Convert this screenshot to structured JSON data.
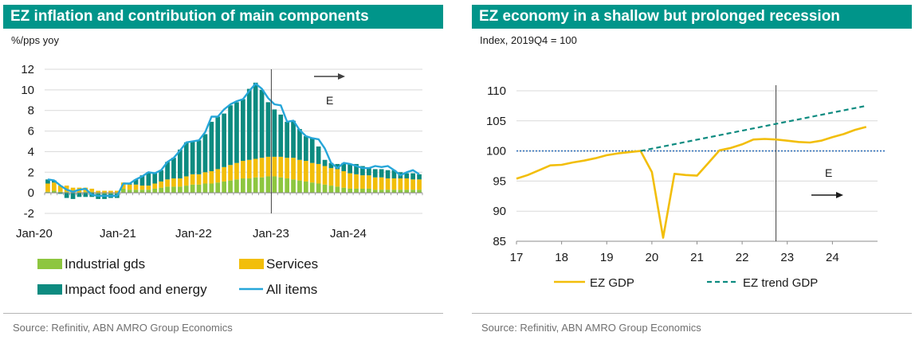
{
  "colors": {
    "header_bg": "#00958a",
    "industrial": "#8dc63f",
    "services": "#f2be0a",
    "food_energy": "#0d8b80",
    "all_items": "#26a6d9",
    "gdp": "#f2be0a",
    "trend": "#0d8b80",
    "baseline": "#2f6fb8"
  },
  "chart_data": [
    {
      "type": "bar",
      "title": "EZ inflation and contribution of main components",
      "ylabel": "%/pps yoy",
      "ylim": [
        -2,
        12
      ],
      "yticks": [
        -2,
        0,
        2,
        4,
        6,
        8,
        10,
        12
      ],
      "xticks": [
        "Jan-20",
        "Jan-21",
        "Jan-22",
        "Jan-23",
        "Jan-24"
      ],
      "forecast_start": "2022-12",
      "annotation": "E",
      "legend_position": "bottom",
      "x_start": "2020-01",
      "x_end": "2024-12",
      "series": [
        {
          "name": "Industrial gds",
          "values": [
            0.1,
            0.2,
            0.1,
            0.1,
            0.0,
            0.0,
            0.1,
            0.1,
            -0.1,
            -0.1,
            -0.1,
            -0.1,
            0.4,
            0.3,
            0.3,
            0.3,
            0.3,
            0.4,
            0.5,
            0.6,
            0.6,
            0.6,
            0.7,
            0.8,
            0.8,
            0.9,
            0.9,
            1.0,
            1.1,
            1.2,
            1.3,
            1.4,
            1.4,
            1.5,
            1.5,
            1.6,
            1.6,
            1.5,
            1.4,
            1.3,
            1.2,
            1.1,
            1.0,
            0.9,
            0.8,
            0.7,
            0.6,
            0.5,
            0.4,
            0.4,
            0.4,
            0.4,
            0.3,
            0.3,
            0.3,
            0.3,
            0.3,
            0.3,
            0.3,
            0.3
          ]
        },
        {
          "name": "Services",
          "values": [
            0.8,
            0.8,
            0.6,
            0.6,
            0.5,
            0.5,
            0.4,
            0.3,
            0.2,
            0.2,
            0.2,
            0.2,
            0.6,
            0.5,
            0.5,
            0.4,
            0.4,
            0.5,
            0.6,
            0.7,
            0.8,
            0.8,
            0.9,
            1.0,
            1.0,
            1.1,
            1.2,
            1.3,
            1.4,
            1.5,
            1.6,
            1.7,
            1.8,
            1.8,
            1.9,
            1.9,
            1.9,
            2.0,
            2.0,
            2.1,
            2.0,
            2.0,
            1.9,
            1.9,
            1.8,
            1.7,
            1.7,
            1.6,
            1.5,
            1.4,
            1.3,
            1.3,
            1.2,
            1.2,
            1.1,
            1.1,
            1.1,
            1.1,
            1.0,
            1.0
          ]
        },
        {
          "name": "Impact food and energy",
          "values": [
            0.4,
            0.2,
            -0.1,
            -0.5,
            -0.6,
            -0.4,
            -0.4,
            -0.4,
            -0.5,
            -0.5,
            -0.4,
            -0.4,
            0.0,
            0.1,
            0.5,
            1.0,
            1.3,
            1.0,
            1.1,
            1.7,
            2.0,
            2.8,
            3.3,
            3.2,
            3.3,
            3.7,
            4.8,
            5.1,
            5.2,
            5.8,
            5.9,
            6.0,
            6.9,
            7.4,
            6.6,
            5.3,
            4.6,
            4.1,
            3.5,
            3.6,
            3.0,
            2.4,
            2.4,
            1.7,
            0.6,
            0.5,
            0.5,
            0.8,
            0.9,
            1.0,
            0.9,
            0.7,
            0.8,
            0.8,
            0.8,
            0.8,
            0.6,
            0.5,
            0.6,
            0.5
          ]
        },
        {
          "name": "All items",
          "values": [
            1.3,
            1.2,
            0.7,
            0.3,
            0.1,
            0.3,
            0.4,
            -0.2,
            -0.3,
            -0.3,
            -0.3,
            -0.3,
            0.9,
            0.9,
            1.3,
            1.6,
            2.0,
            1.9,
            2.2,
            3.0,
            3.4,
            4.1,
            4.9,
            5.0,
            5.1,
            5.9,
            7.4,
            7.4,
            8.1,
            8.6,
            8.9,
            9.1,
            9.9,
            10.6,
            10.1,
            9.2,
            8.6,
            8.5,
            6.9,
            7.0,
            6.1,
            5.5,
            5.3,
            5.2,
            4.3,
            2.9,
            2.4,
            2.9,
            2.8,
            2.6,
            2.4,
            2.4,
            2.6,
            2.5,
            2.6,
            2.2,
            1.7,
            2.0,
            2.2,
            1.8
          ]
        }
      ]
    },
    {
      "type": "line",
      "title": "EZ economy in a shallow but prolonged recession",
      "ylabel": "Index, 2019Q4 = 100",
      "ylim": [
        85,
        110
      ],
      "yticks": [
        85,
        90,
        95,
        100,
        105,
        110
      ],
      "xlim": [
        17,
        25
      ],
      "xticks": [
        "17",
        "18",
        "19",
        "20",
        "21",
        "22",
        "23",
        "24"
      ],
      "reference_line": 100,
      "forecast_start": 22.75,
      "annotation": "E",
      "legend_position": "bottom",
      "series": [
        {
          "name": "EZ GDP",
          "x": [
            17.0,
            17.25,
            17.5,
            17.75,
            18.0,
            18.25,
            18.5,
            18.75,
            19.0,
            19.25,
            19.5,
            19.75,
            20.0,
            20.25,
            20.5,
            20.75,
            21.0,
            21.25,
            21.5,
            21.75,
            22.0,
            22.25,
            22.5,
            22.75,
            23.0,
            23.25,
            23.5,
            23.75,
            24.0,
            24.25,
            24.5,
            24.75
          ],
          "y": [
            95.4,
            96.0,
            96.8,
            97.6,
            97.7,
            98.1,
            98.4,
            98.8,
            99.3,
            99.6,
            99.8,
            100.0,
            96.5,
            85.6,
            96.2,
            96.0,
            95.9,
            98.0,
            100.1,
            100.5,
            101.1,
            101.9,
            102.0,
            101.9,
            101.7,
            101.5,
            101.4,
            101.7,
            102.3,
            102.8,
            103.5,
            104.0
          ]
        },
        {
          "name": "EZ trend GDP",
          "x": [
            19.75,
            24.75
          ],
          "y": [
            100.0,
            107.5
          ]
        }
      ]
    }
  ],
  "left": {
    "title": "EZ inflation and contribution of main components",
    "unit": "%/pps yoy",
    "annotation": "E",
    "legend": [
      "Industrial gds",
      "Services",
      "Impact food and energy",
      "All items"
    ],
    "source": "Source: Refinitiv, ABN AMRO Group Economics"
  },
  "right": {
    "title": "EZ economy in a shallow but prolonged recession",
    "unit": "Index, 2019Q4 = 100",
    "annotation": "E",
    "legend": [
      "EZ GDP",
      "EZ trend GDP"
    ],
    "source": "Source:  Refinitiv, ABN AMRO Group Economics"
  }
}
